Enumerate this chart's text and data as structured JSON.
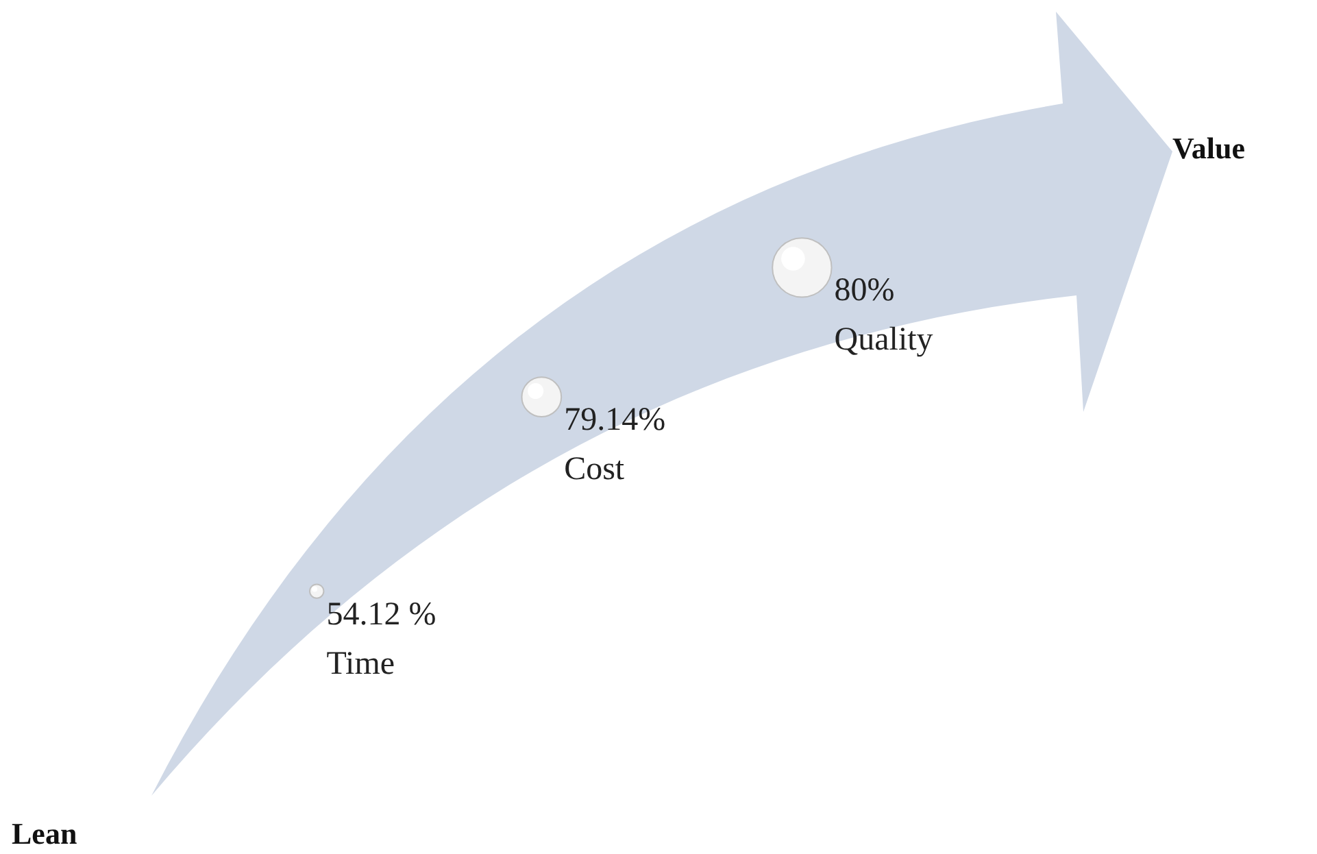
{
  "chart_data": {
    "type": "other",
    "categories": [
      "Time",
      "Cost",
      "Quality"
    ],
    "values": [
      54.12,
      79.14,
      80
    ],
    "value_labels": [
      "54.12 %",
      "79.14%",
      "80%"
    ],
    "annotations": [
      "Lean",
      "Value"
    ]
  }
}
